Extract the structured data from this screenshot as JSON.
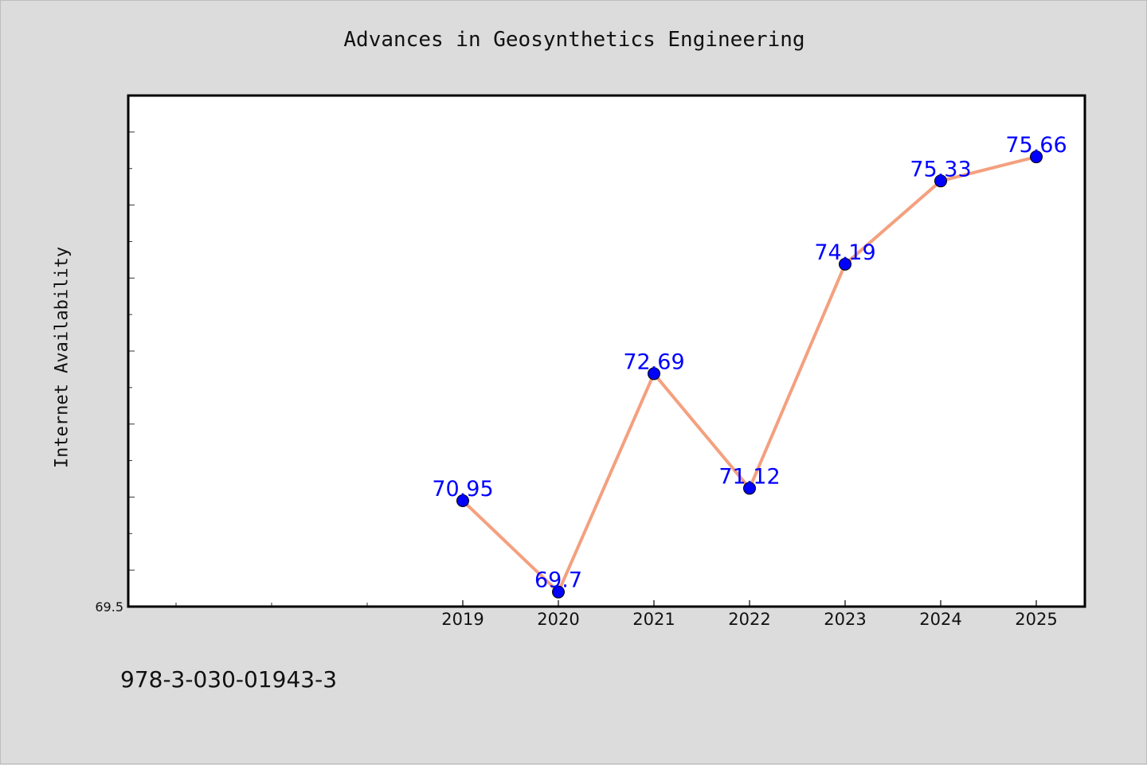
{
  "page": {
    "title": "Advances in Geosynthetics Engineering",
    "footer_text": "978-3-030-01943-3"
  },
  "colors": {
    "background": "#dcdcdc",
    "plot_background": "#ffffff",
    "line": "#f4a07f",
    "marker": "#0000ff",
    "label": "#0000ff"
  },
  "chart_data": {
    "type": "line",
    "title": "Advances in Geosynthetics Engineering",
    "xlabel": "",
    "ylabel": "Internet Availability",
    "categories": [
      "2019",
      "2020",
      "2021",
      "2022",
      "2023",
      "2024",
      "2025"
    ],
    "series": [
      {
        "values": [
          70.95,
          69.7,
          72.69,
          71.12,
          74.19,
          75.33,
          75.66
        ]
      }
    ],
    "data_labels": [
      "70.95",
      "69.7",
      "72.69",
      "71.12",
      "74.19",
      "75.33",
      "75.66"
    ],
    "ylim": [
      69.5,
      76.5
    ],
    "yticks": [
      69.5
    ],
    "ytick_labels": [
      "69.5"
    ],
    "grid": false,
    "legend": "none"
  }
}
